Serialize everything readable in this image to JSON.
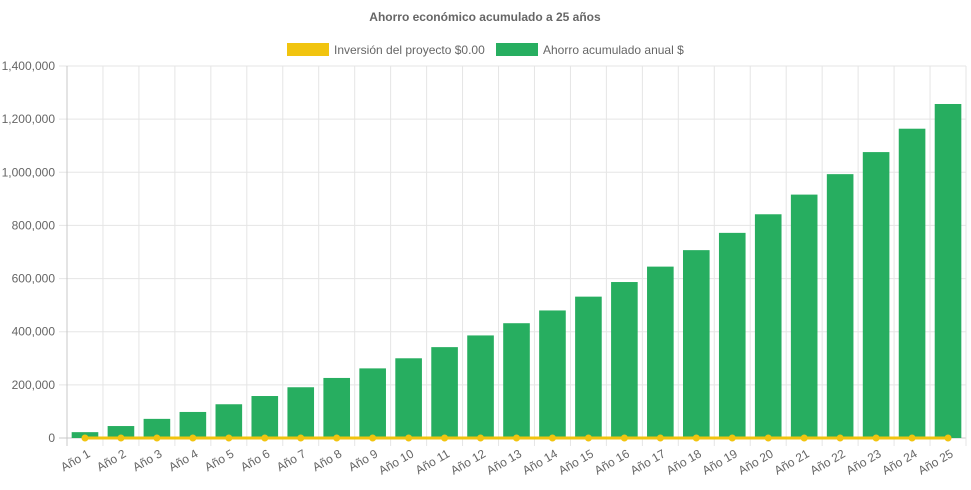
{
  "chart_data": {
    "type": "bar",
    "title": "Ahorro económico acumulado a 25 años",
    "categories": [
      "Año 1",
      "Año 2",
      "Año 3",
      "Año 4",
      "Año 5",
      "Año 6",
      "Año 7",
      "Año 8",
      "Año 9",
      "Año 10",
      "Año 11",
      "Año 12",
      "Año 13",
      "Año 14",
      "Año 15",
      "Año 16",
      "Año 17",
      "Año 18",
      "Año 19",
      "Año 20",
      "Año 21",
      "Año 22",
      "Año 23",
      "Año 24",
      "Año 25"
    ],
    "series": [
      {
        "name": "Inversión del proyecto $0.00",
        "type": "line",
        "color": "#f1c40f",
        "values": [
          0,
          0,
          0,
          0,
          0,
          0,
          0,
          0,
          0,
          0,
          0,
          0,
          0,
          0,
          0,
          0,
          0,
          0,
          0,
          0,
          0,
          0,
          0,
          0,
          0
        ]
      },
      {
        "name": "Ahorro acumulado anual $",
        "type": "bar",
        "color": "#27ae60",
        "values": [
          22000,
          45000,
          72000,
          98000,
          127000,
          158000,
          191000,
          226000,
          262000,
          300000,
          342000,
          386000,
          432000,
          480000,
          532000,
          587000,
          645000,
          707000,
          772000,
          842000,
          916000,
          993000,
          1076000,
          1164000,
          1257000
        ]
      }
    ],
    "yticks": [
      "0",
      "200,000",
      "400,000",
      "600,000",
      "800,000",
      "1,000,000",
      "1,200,000",
      "1,400,000"
    ],
    "ylim": [
      0,
      1400000
    ],
    "grid": true,
    "legend_position": "top"
  }
}
